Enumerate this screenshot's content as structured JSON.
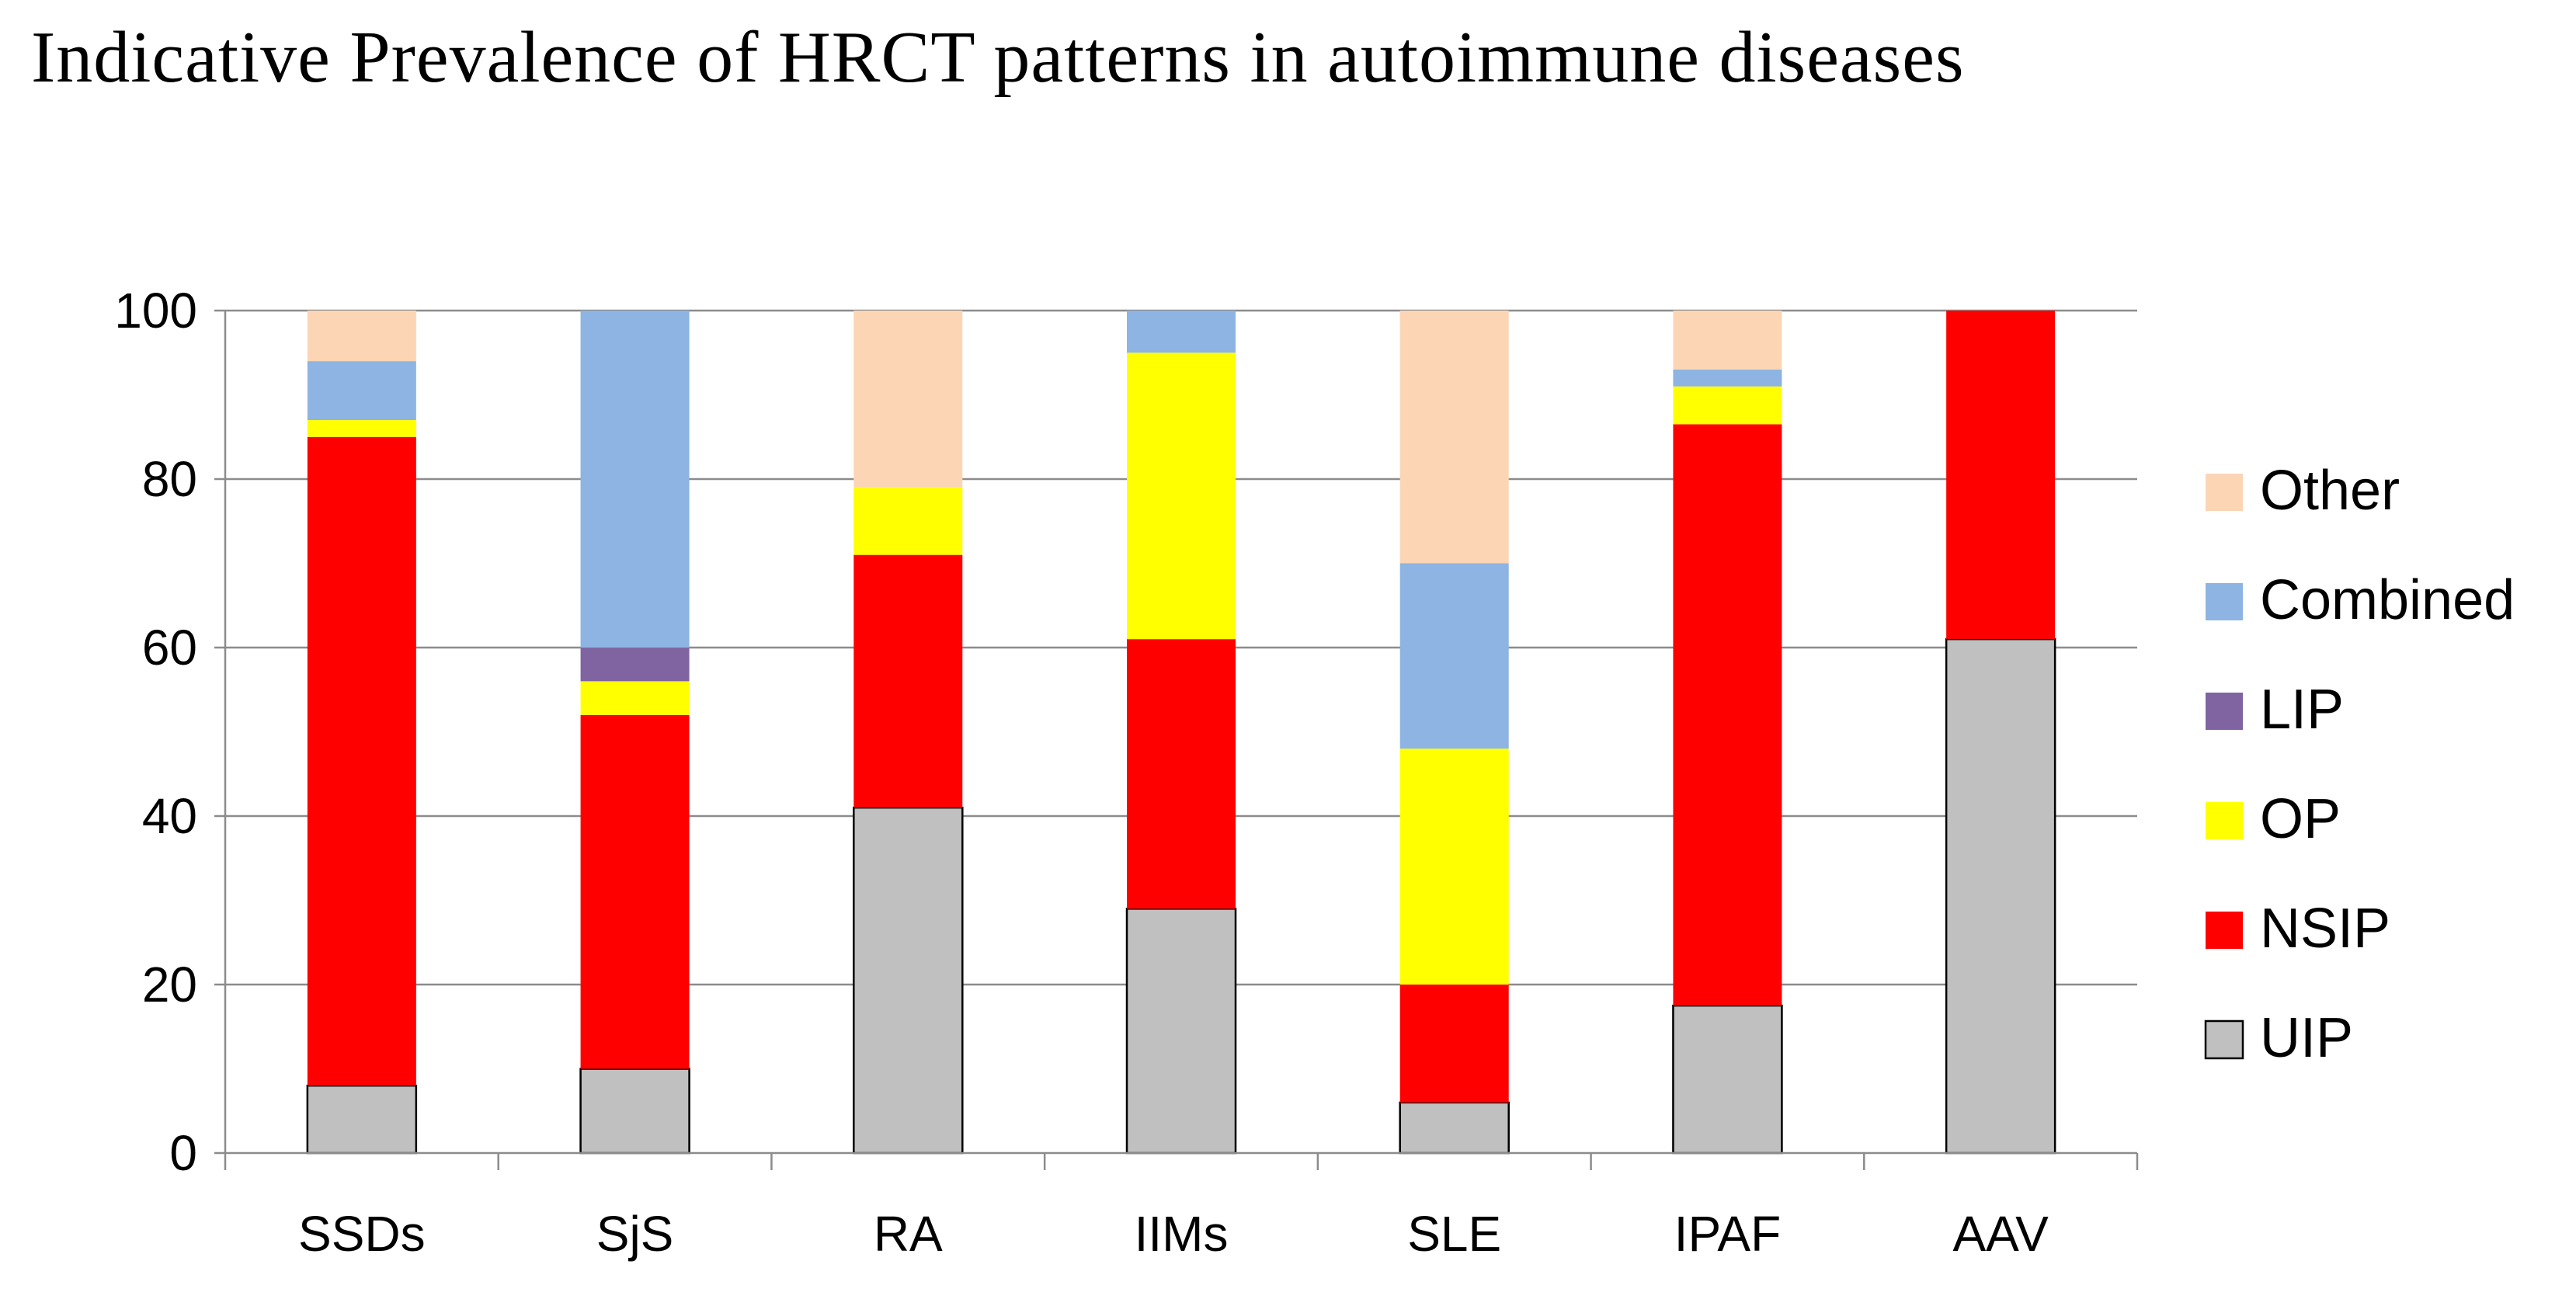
{
  "title": "Indicative Prevalence of HRCT patterns in autoimmune diseases",
  "chart_data": {
    "type": "bar",
    "stacked": true,
    "title": "Indicative Prevalence of HRCT patterns in autoimmune diseases",
    "xlabel": "",
    "ylabel": "",
    "ylim": [
      0,
      100
    ],
    "yticks": [
      "0",
      "20",
      "40",
      "60",
      "80",
      "100"
    ],
    "grid": true,
    "legend_position": "right",
    "categories": [
      "SSDs",
      "SjS",
      "RA",
      "IIMs",
      "SLE",
      "IPAF",
      "AAV"
    ],
    "series": [
      {
        "name": "UIP",
        "color": "#c0c0c0",
        "values": [
          8,
          10,
          41,
          29,
          6,
          17.5,
          61
        ]
      },
      {
        "name": "NSIP",
        "color": "#ff0000",
        "values": [
          77,
          42,
          30,
          32,
          14,
          69,
          39
        ]
      },
      {
        "name": "OP",
        "color": "#ffff00",
        "values": [
          2,
          4,
          8,
          34,
          28,
          4.5,
          0
        ]
      },
      {
        "name": "LIP",
        "color": "#8064a2",
        "values": [
          0,
          4,
          0,
          0,
          0,
          0,
          0
        ]
      },
      {
        "name": "Combined",
        "color": "#8db4e2",
        "values": [
          7,
          40,
          0,
          5,
          22,
          2,
          0
        ]
      },
      {
        "name": "Other",
        "color": "#fcd5b5",
        "values": [
          6,
          0,
          21,
          0,
          30,
          7,
          0
        ]
      }
    ]
  }
}
